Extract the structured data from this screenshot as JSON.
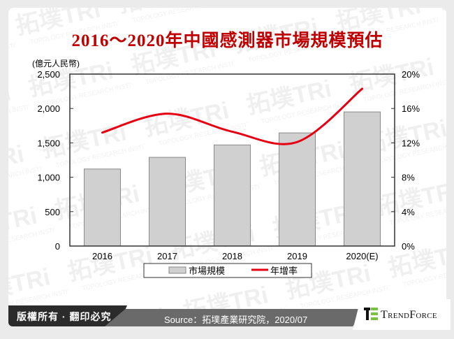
{
  "title": "2016～2020年中國感測器市場規模預估",
  "chart_data": {
    "type": "bar",
    "title": "2016～2020年中國感測器市場規模預估",
    "categories": [
      "2016",
      "2017",
      "2018",
      "2019",
      "2020(E)"
    ],
    "series": [
      {
        "name": "市場規模",
        "type": "bar",
        "axis": "left",
        "color": "#d0d0d0",
        "values": [
          1120,
          1290,
          1470,
          1645,
          1950
        ]
      },
      {
        "name": "年增率",
        "type": "line",
        "axis": "right",
        "color": "#e60012",
        "values": [
          13.2,
          15.4,
          13.3,
          12.1,
          18.3
        ]
      }
    ],
    "ylabel": "(億元人民幣)",
    "ylim": [
      0,
      2500
    ],
    "yticks": [
      "0",
      "500",
      "1,000",
      "1,500",
      "2,000",
      "2,500"
    ],
    "y2lim": [
      0,
      20
    ],
    "y2ticks": [
      "0%",
      "4%",
      "8%",
      "12%",
      "16%",
      "20%"
    ],
    "legend_position": "bottom",
    "grid": false
  },
  "axis": {
    "left_label": "(億元人民幣)",
    "left_ticks": [
      "0",
      "500",
      "1,000",
      "1,500",
      "2,000",
      "2,500"
    ],
    "right_ticks": [
      "0%",
      "4%",
      "8%",
      "12%",
      "16%",
      "20%"
    ],
    "categories": [
      "2016",
      "2017",
      "2018",
      "2019",
      "2020(E)"
    ]
  },
  "legend": {
    "bar_label": "市場規模",
    "line_label": "年增率"
  },
  "footer": {
    "copyright": "版權所有 · 翻印必究",
    "source": "Source：拓墣產業研究院，2020/07",
    "brand": "TrendForce"
  },
  "colors": {
    "title": "#c00000",
    "line": "#e60012",
    "bar": "#d0d0d0",
    "brand_green": "#7ac142"
  }
}
